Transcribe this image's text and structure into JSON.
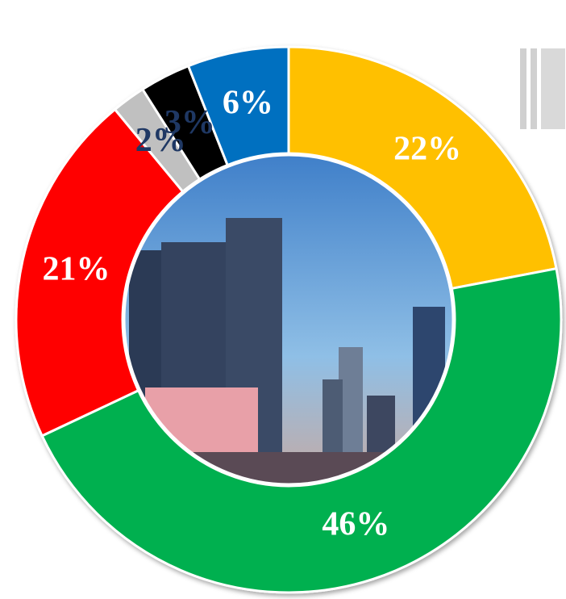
{
  "chart_data": {
    "type": "donut",
    "categories": [
      null,
      null,
      null,
      null,
      null,
      null
    ],
    "values": [
      22,
      46,
      21,
      2,
      3,
      6
    ],
    "value_labels": [
      "22%",
      "46%",
      "21%",
      "2%",
      "3%",
      "6%"
    ],
    "colors": [
      "#ffc000",
      "#00b050",
      "#ff0000",
      "#c0c0c0",
      "#000000",
      "#0070c0"
    ]
  }
}
